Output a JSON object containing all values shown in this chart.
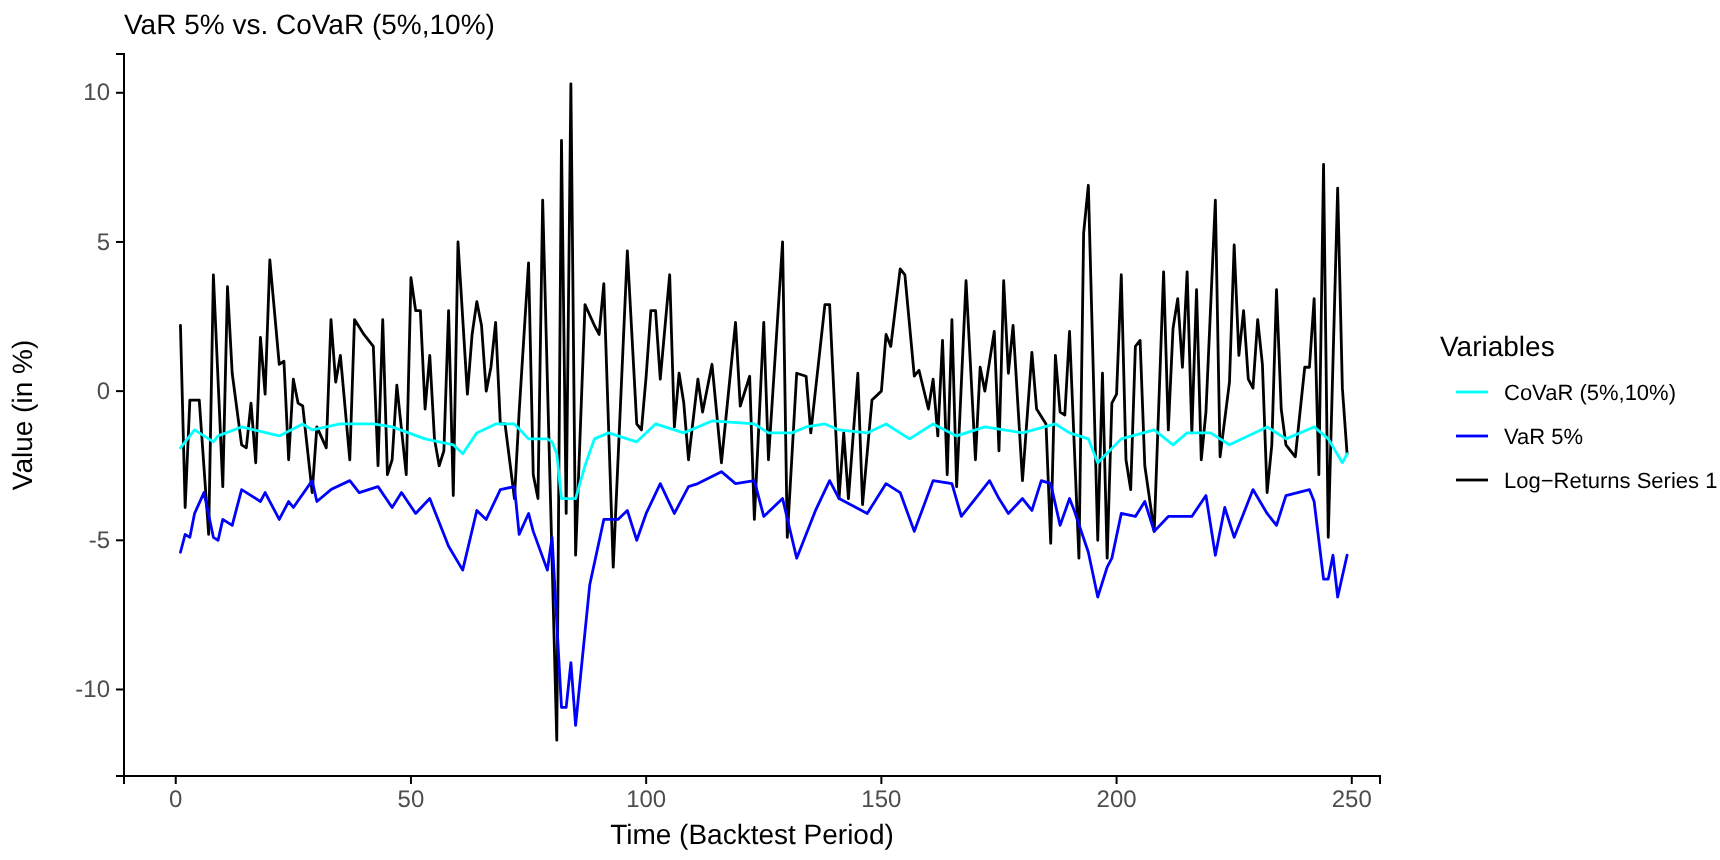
{
  "chart_data": {
    "type": "line",
    "title": "VaR 5% vs. CoVaR (5%,10%)",
    "xlabel": "Time (Backtest Period)",
    "ylabel": "Value (in %)",
    "legend_title": "Variables",
    "legend": "right",
    "xlim": [
      -11,
      256
    ],
    "xticks": [
      0,
      50,
      100,
      150,
      200,
      250
    ],
    "ylim": [
      -12.9,
      11.3
    ],
    "yticks": [
      -10,
      -5,
      0,
      5,
      10
    ],
    "series": [
      {
        "name": "CoVaR (5%,10%)",
        "color": "#00ffff",
        "x": [
          1,
          4,
          8,
          9,
          14,
          22,
          27,
          29,
          35,
          42,
          46,
          53,
          59,
          61,
          64,
          68,
          72,
          75,
          79,
          80,
          81,
          82,
          85,
          87,
          89,
          92,
          94,
          98,
          102,
          108,
          114,
          123,
          126,
          131,
          134,
          138,
          141,
          147,
          151,
          156,
          161,
          166,
          172,
          180,
          187,
          190,
          194,
          196,
          201,
          208,
          212,
          215,
          220,
          224,
          232,
          236,
          242,
          245,
          248,
          249
        ],
        "values": [
          -1.9,
          -1.3,
          -1.7,
          -1.5,
          -1.2,
          -1.5,
          -1.1,
          -1.3,
          -1.1,
          -1.1,
          -1.2,
          -1.6,
          -1.8,
          -2.1,
          -1.4,
          -1.1,
          -1.1,
          -1.6,
          -1.6,
          -1.7,
          -2.1,
          -3.6,
          -3.6,
          -2.5,
          -1.6,
          -1.4,
          -1.5,
          -1.7,
          -1.1,
          -1.4,
          -1.0,
          -1.1,
          -1.4,
          -1.4,
          -1.2,
          -1.1,
          -1.3,
          -1.4,
          -1.1,
          -1.6,
          -1.1,
          -1.5,
          -1.2,
          -1.4,
          -1.1,
          -1.4,
          -1.6,
          -2.4,
          -1.6,
          -1.3,
          -1.8,
          -1.4,
          -1.4,
          -1.8,
          -1.2,
          -1.6,
          -1.2,
          -1.6,
          -2.4,
          -2.1
        ]
      },
      {
        "name": "VaR 5%",
        "color": "#0000ff",
        "x": [
          1,
          2,
          3,
          4,
          6,
          8,
          9,
          10,
          12,
          14,
          18,
          19,
          22,
          24,
          25,
          29,
          30,
          33,
          37,
          39,
          43,
          46,
          48,
          51,
          54,
          58,
          61,
          64,
          66,
          69,
          72,
          73,
          75,
          76,
          79,
          80,
          82,
          83,
          84,
          85,
          88,
          91,
          94,
          96,
          98,
          100,
          103,
          106,
          109,
          111,
          116,
          119,
          123,
          125,
          129,
          132,
          136,
          139,
          141,
          147,
          151,
          154,
          157,
          161,
          165,
          167,
          170,
          173,
          175,
          177,
          180,
          182,
          184,
          186,
          188,
          190,
          191,
          194,
          196,
          198,
          199,
          201,
          204,
          206,
          208,
          211,
          213,
          216,
          219,
          221,
          223,
          225,
          227,
          229,
          232,
          234,
          236,
          241,
          242,
          244,
          245,
          246,
          247,
          249
        ],
        "values": [
          -5.4,
          -4.8,
          -4.9,
          -4.1,
          -3.4,
          -4.9,
          -5.0,
          -4.3,
          -4.5,
          -3.3,
          -3.7,
          -3.4,
          -4.3,
          -3.7,
          -3.9,
          -3.0,
          -3.7,
          -3.3,
          -3.0,
          -3.4,
          -3.2,
          -3.9,
          -3.4,
          -4.1,
          -3.6,
          -5.2,
          -6.0,
          -4.0,
          -4.3,
          -3.3,
          -3.2,
          -4.8,
          -4.1,
          -4.7,
          -6.0,
          -4.9,
          -10.6,
          -10.6,
          -9.1,
          -11.2,
          -6.5,
          -4.3,
          -4.3,
          -4.0,
          -5.0,
          -4.1,
          -3.1,
          -4.1,
          -3.2,
          -3.1,
          -2.7,
          -3.1,
          -3.0,
          -4.2,
          -3.6,
          -5.6,
          -4.0,
          -3.0,
          -3.6,
          -4.1,
          -3.1,
          -3.4,
          -4.7,
          -3.0,
          -3.1,
          -4.2,
          -3.6,
          -3.0,
          -3.6,
          -4.1,
          -3.6,
          -4.0,
          -3.0,
          -3.1,
          -4.5,
          -3.6,
          -4.0,
          -5.4,
          -6.9,
          -5.9,
          -5.6,
          -4.1,
          -4.2,
          -3.7,
          -4.7,
          -4.2,
          -4.2,
          -4.2,
          -3.5,
          -5.5,
          -3.9,
          -4.9,
          -4.1,
          -3.3,
          -4.1,
          -4.5,
          -3.5,
          -3.3,
          -3.7,
          -6.3,
          -6.3,
          -5.5,
          -6.9,
          -5.5
        ]
      },
      {
        "name": "Log−Returns Series 1",
        "color": "#000000",
        "x": [
          1,
          2,
          3,
          5,
          7,
          8,
          10,
          11,
          12,
          14,
          15,
          16,
          17,
          18,
          19,
          20,
          22,
          23,
          24,
          25,
          26,
          27,
          29,
          30,
          32,
          33,
          34,
          35,
          37,
          38,
          40,
          42,
          43,
          44,
          45,
          46,
          47,
          49,
          50,
          51,
          52,
          53,
          54,
          55,
          56,
          57,
          58,
          59,
          60,
          62,
          63,
          64,
          65,
          66,
          67,
          68,
          69,
          70,
          72,
          73,
          75,
          76,
          77,
          78,
          81,
          82,
          83,
          84,
          85,
          87,
          89,
          90,
          91,
          93,
          96,
          98,
          99,
          100,
          101,
          102,
          103,
          105,
          106,
          107,
          108,
          109,
          111,
          112,
          114,
          116,
          119,
          120,
          122,
          123,
          125,
          126,
          129,
          130,
          132,
          134,
          135,
          138,
          139,
          141,
          142,
          143,
          145,
          146,
          148,
          150,
          151,
          152,
          154,
          155,
          157,
          158,
          160,
          161,
          162,
          163,
          164,
          165,
          166,
          168,
          170,
          171,
          172,
          174,
          175,
          176,
          177,
          178,
          180,
          182,
          183,
          185,
          186,
          187,
          188,
          189,
          190,
          192,
          193,
          194,
          196,
          197,
          198,
          199,
          200,
          201,
          202,
          203,
          204,
          205,
          206,
          208,
          210,
          211,
          212,
          213,
          214,
          215,
          216,
          217,
          218,
          219,
          221,
          222,
          224,
          225,
          226,
          227,
          228,
          229,
          230,
          231,
          232,
          233,
          234,
          235,
          236,
          238,
          240,
          241,
          242,
          243,
          244,
          245,
          247,
          248,
          249
        ],
        "values": [
          2.2,
          -3.9,
          -0.3,
          -0.3,
          -4.8,
          3.9,
          -3.2,
          3.5,
          0.6,
          -1.8,
          -1.9,
          -0.4,
          -2.4,
          1.8,
          -0.1,
          4.4,
          0.9,
          1.0,
          -2.3,
          0.4,
          -0.4,
          -0.5,
          -3.4,
          -1.2,
          -1.9,
          2.4,
          0.3,
          1.2,
          -2.3,
          2.4,
          1.9,
          1.5,
          -2.5,
          2.4,
          -2.8,
          -2.3,
          0.2,
          -2.8,
          3.8,
          2.7,
          2.7,
          -0.6,
          1.2,
          -1.6,
          -2.5,
          -2.0,
          2.7,
          -3.5,
          5.0,
          -0.1,
          1.9,
          3.0,
          2.2,
          0.0,
          0.8,
          2.3,
          -1.1,
          -1.1,
          -3.6,
          -0.7,
          4.3,
          -2.8,
          -3.6,
          6.4,
          -11.7,
          8.4,
          -4.1,
          10.3,
          -5.5,
          2.9,
          2.2,
          1.9,
          3.6,
          -5.9,
          4.7,
          -1.1,
          -1.3,
          0.5,
          2.7,
          2.7,
          0.4,
          3.9,
          -1.2,
          0.6,
          -0.4,
          -2.3,
          0.4,
          -0.7,
          0.9,
          -2.4,
          2.3,
          -0.5,
          0.5,
          -4.3,
          2.3,
          -2.3,
          5.0,
          -4.9,
          0.6,
          0.5,
          -1.4,
          2.9,
          2.9,
          -3.6,
          -1.4,
          -3.6,
          0.6,
          -3.8,
          -0.3,
          0.0,
          1.9,
          1.5,
          4.1,
          3.9,
          0.5,
          0.7,
          -0.6,
          0.4,
          -1.5,
          1.7,
          -2.8,
          2.4,
          -3.2,
          3.7,
          -2.3,
          0.8,
          0.0,
          2.0,
          -2.0,
          3.7,
          0.6,
          2.2,
          -3.0,
          1.3,
          -0.6,
          -1.1,
          -5.1,
          1.2,
          -0.7,
          -0.8,
          2.0,
          -5.6,
          5.3,
          6.9,
          -5.0,
          0.6,
          -5.6,
          -0.4,
          -0.1,
          3.9,
          -2.3,
          -3.3,
          1.5,
          1.7,
          -2.5,
          -4.7,
          4.0,
          -1.3,
          2.1,
          3.1,
          0.8,
          4.0,
          -1.4,
          3.4,
          -2.3,
          -0.7,
          6.4,
          -2.2,
          0.3,
          4.9,
          1.2,
          2.7,
          0.4,
          0.1,
          2.4,
          0.9,
          -3.4,
          -1.8,
          3.4,
          -0.6,
          -1.8,
          -2.2,
          0.8,
          0.8,
          3.1,
          -2.8,
          7.6,
          -4.9,
          6.8,
          0.1,
          -2.1
        ]
      }
    ]
  }
}
